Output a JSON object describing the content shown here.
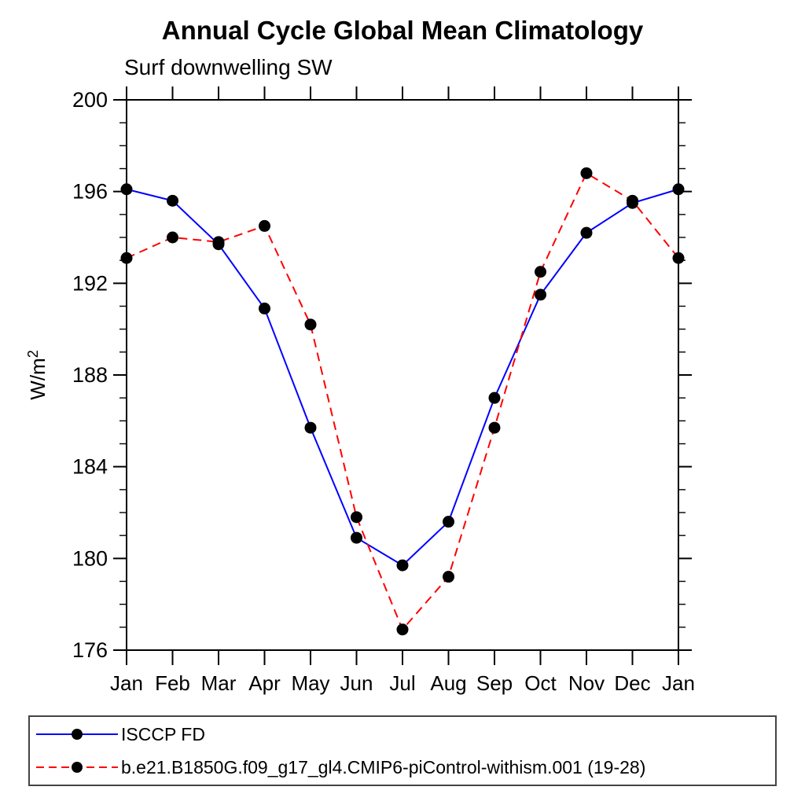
{
  "chart_data": {
    "type": "line",
    "title": "Annual Cycle Global Mean Climatology",
    "subtitle": "Surf downwelling SW",
    "ylabel_main": "W/m",
    "ylabel_sup": "2",
    "ylabel_full": "W/m²",
    "x_categories": [
      "Jan",
      "Feb",
      "Mar",
      "Apr",
      "May",
      "Jun",
      "Jul",
      "Aug",
      "Sep",
      "Oct",
      "Nov",
      "Dec",
      "Jan"
    ],
    "ylim": [
      176,
      200
    ],
    "y_major_step": 4,
    "y_minor_step": 1,
    "y_tick_labels": [
      "176",
      "180",
      "184",
      "188",
      "192",
      "196",
      "200"
    ],
    "grid": false,
    "legend_position": "bottom",
    "marker_color": "#000000",
    "series": [
      {
        "name": "ISCCP FD",
        "color": "#0000ff",
        "style": "solid",
        "marker": "black-circle",
        "values": [
          196.1,
          195.6,
          193.7,
          190.9,
          185.7,
          180.9,
          179.7,
          181.6,
          187.0,
          191.5,
          194.2,
          195.5,
          196.1
        ]
      },
      {
        "name": "b.e21.B1850G.f09_g17_gl4.CMIP6-piControl-withism.001 (19-28)",
        "color": "#ff0000",
        "style": "dashed",
        "marker": "black-circle",
        "values": [
          193.1,
          194.0,
          193.8,
          194.5,
          190.2,
          181.8,
          176.9,
          179.2,
          185.7,
          192.5,
          196.8,
          195.6,
          193.1
        ]
      }
    ]
  }
}
